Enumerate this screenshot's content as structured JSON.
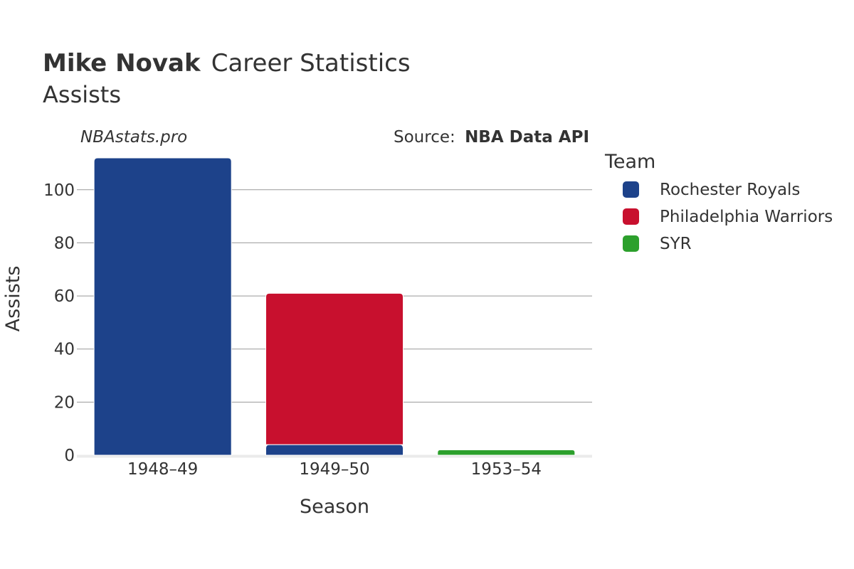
{
  "title": {
    "bold": "Mike Novak",
    "rest": "Career Statistics"
  },
  "subtitle": "Assists",
  "credit": "NBAstats.pro",
  "source": {
    "prefix": "Source:",
    "name": "NBA Data API"
  },
  "legend": {
    "title": "Team"
  },
  "chart_data": {
    "type": "bar",
    "stacked": true,
    "categories": [
      "1948–49",
      "1949–50",
      "1953–54"
    ],
    "series": [
      {
        "name": "Rochester Royals",
        "color": "#1d428a",
        "values": [
          112,
          4,
          0
        ]
      },
      {
        "name": "Philadelphia Warriors",
        "color": "#c8102e",
        "values": [
          0,
          57,
          0
        ]
      },
      {
        "name": "SYR",
        "color": "#2ca02c",
        "values": [
          0,
          0,
          2
        ]
      }
    ],
    "xlabel": "Season",
    "ylabel": "Assists",
    "ylim": [
      0,
      112
    ],
    "yticks": [
      0,
      20,
      40,
      60,
      80,
      100
    ],
    "grid": true,
    "legend_position": "right"
  }
}
